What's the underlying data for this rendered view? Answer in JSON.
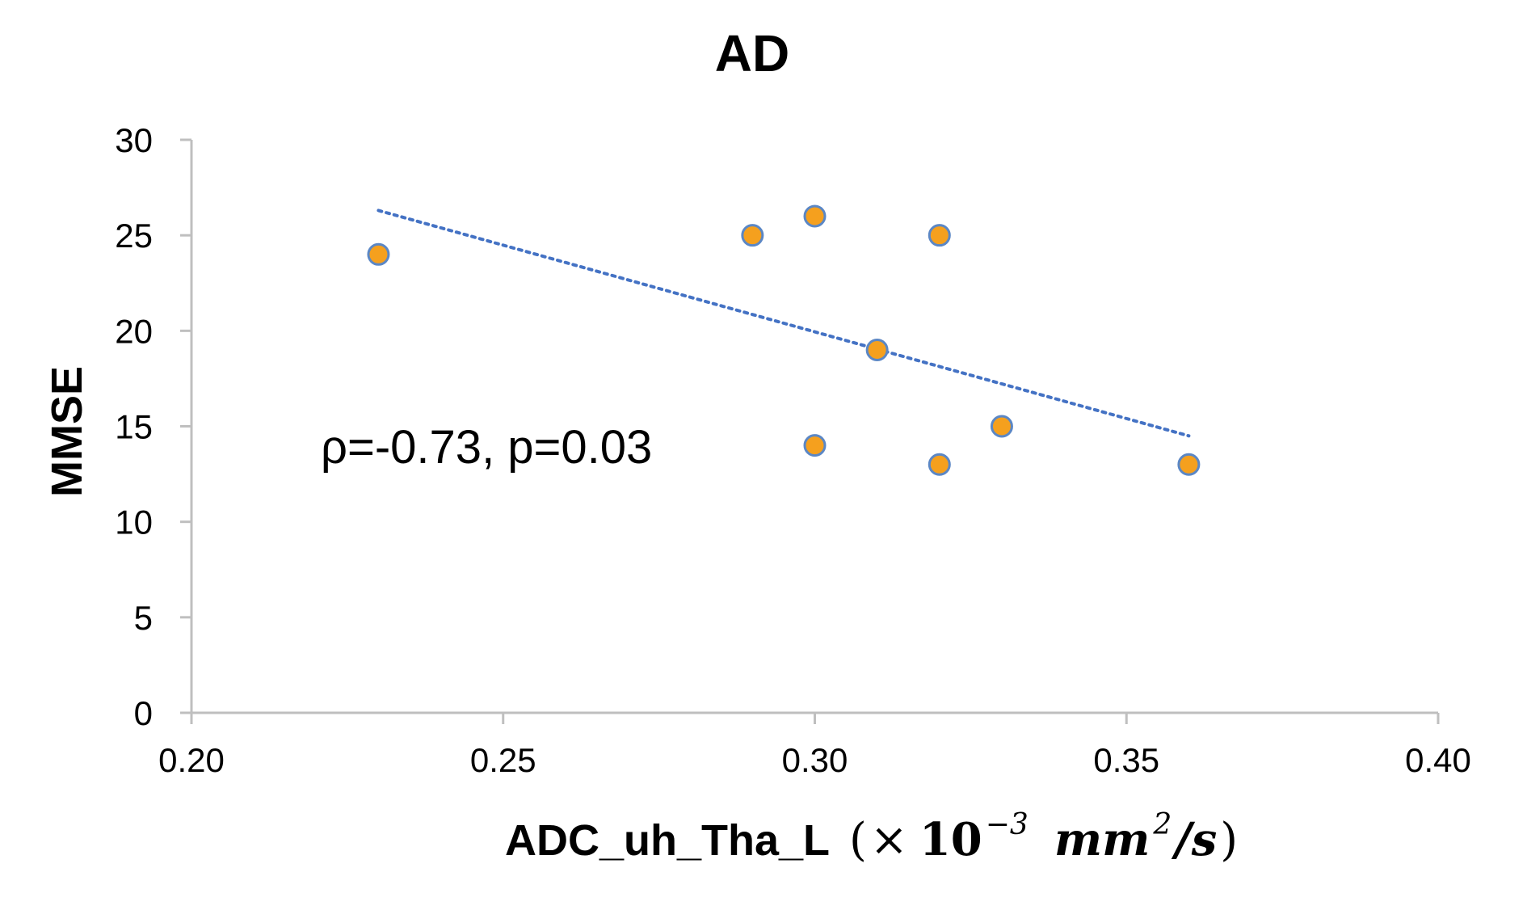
{
  "chart_data": {
    "type": "scatter",
    "title": "AD",
    "xlabel": "ADC_uh_Tha_L",
    "xlabel_unit": {
      "open": "(",
      "times": "×",
      "base": "10",
      "exponent": "−3",
      "unit": "mm",
      "unit_exponent": "2",
      "per": "/s",
      "close": ")"
    },
    "ylabel": "MMSE",
    "xlim": [
      0.2,
      0.4
    ],
    "ylim": [
      0,
      30
    ],
    "xticks": [
      "0.20",
      "0.25",
      "0.30",
      "0.35",
      "0.40"
    ],
    "yticks": [
      "0",
      "5",
      "10",
      "15",
      "20",
      "25",
      "30"
    ],
    "points": [
      {
        "x": 0.23,
        "y": 24
      },
      {
        "x": 0.29,
        "y": 25
      },
      {
        "x": 0.3,
        "y": 26
      },
      {
        "x": 0.32,
        "y": 25
      },
      {
        "x": 0.31,
        "y": 19
      },
      {
        "x": 0.3,
        "y": 14
      },
      {
        "x": 0.32,
        "y": 13
      },
      {
        "x": 0.33,
        "y": 15
      },
      {
        "x": 0.36,
        "y": 13
      }
    ],
    "trendline": {
      "style": "dotted",
      "x": [
        0.23,
        0.36
      ],
      "y": [
        26.3,
        14.5
      ]
    },
    "annotation": "ρ=-0.73, p=0.03",
    "grid": false,
    "colors": {
      "marker_fill": "#F5A01E",
      "marker_edge": "#5B87C5",
      "trendline": "#4472C4",
      "axis": "#BFBFBF"
    }
  }
}
